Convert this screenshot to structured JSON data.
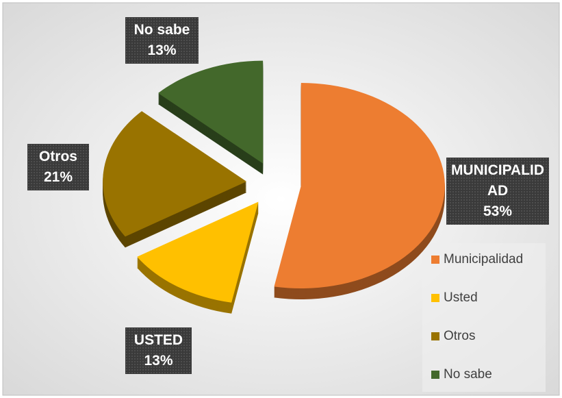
{
  "chart_data": {
    "type": "pie",
    "categories": [
      "Municipalidad",
      "Usted",
      "Otros",
      "No sabe"
    ],
    "values": [
      53,
      13,
      21,
      13
    ],
    "value_labels": [
      "53%",
      "13%",
      "21%",
      "13%"
    ],
    "label_names": [
      "MUNICIPALIDAD",
      "USTED",
      "Otros",
      "No sabe"
    ],
    "colors": [
      "#ed7d31",
      "#ffc000",
      "#997300",
      "#43682b"
    ],
    "legend": "right"
  }
}
